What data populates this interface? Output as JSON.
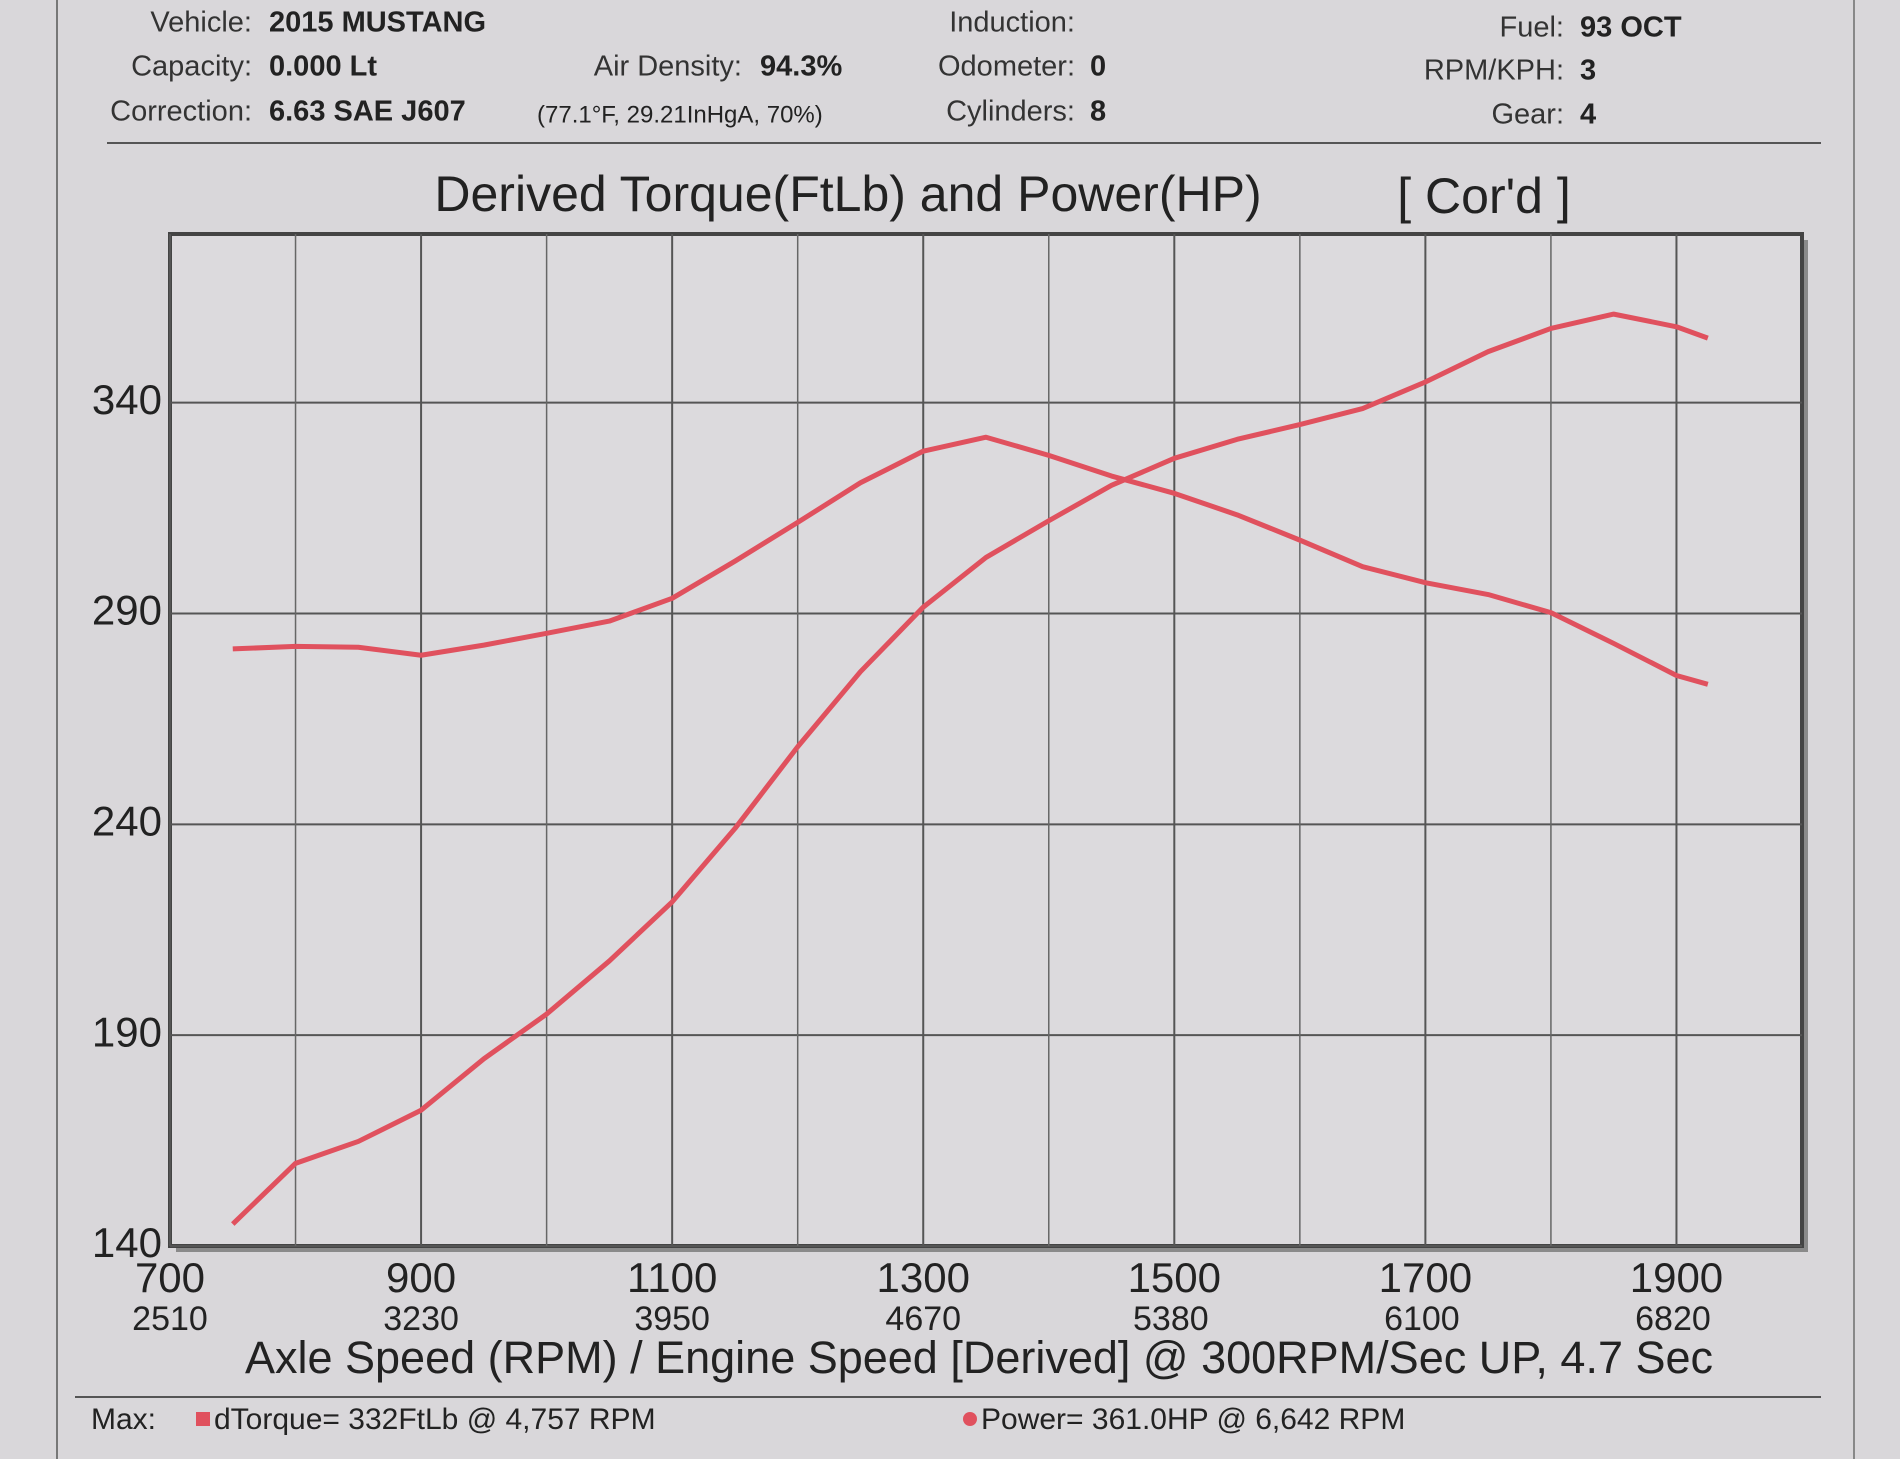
{
  "header": {
    "vehicle": {
      "label": "Vehicle:",
      "value": "2015 MUSTANG"
    },
    "capacity": {
      "label": "Capacity:",
      "value": "0.000 Lt"
    },
    "correction": {
      "label": "Correction:",
      "value": "6.63 SAE J607"
    },
    "air_density": {
      "label": "Air Density:",
      "value": "94.3%"
    },
    "conditions": "(77.1°F, 29.21InHgA, 70%)",
    "induction": {
      "label": "Induction:",
      "value": ""
    },
    "odometer": {
      "label": "Odometer:",
      "value": "0"
    },
    "cylinders": {
      "label": "Cylinders:",
      "value": "8"
    },
    "fuel": {
      "label": "Fuel:",
      "value": "93 OCT"
    },
    "rpm_kph": {
      "label": "RPM/KPH:",
      "value": "3"
    },
    "gear": {
      "label": "Gear:",
      "value": "4"
    }
  },
  "chart_data": {
    "type": "line",
    "title": "Derived Torque(FtLb) and Power(HP)",
    "subtitle": "[ Cor'd ]",
    "x_label": "Axle Speed (RPM) / Engine Speed [Derived] @ 300RPM/Sec UP, 4.7 Sec",
    "x": [
      750,
      800,
      850,
      900,
      950,
      1000,
      1050,
      1100,
      1150,
      1200,
      1250,
      1300,
      1350,
      1400,
      1450,
      1500,
      1550,
      1600,
      1650,
      1700,
      1750,
      1800,
      1850,
      1900,
      1925
    ],
    "series": [
      {
        "name": "dTorque",
        "color": "#e0515e",
        "max_label": "= 332FtLb @ 4,757 RPM",
        "marker": "square",
        "values": [
          281.6,
          282.2,
          282,
          280.1,
          282.5,
          285.3,
          288.2,
          293.6,
          302.4,
          311.6,
          321,
          328.5,
          331.8,
          327.5,
          322.6,
          318.5,
          313.4,
          307.4,
          301.1,
          297.3,
          294.5,
          290.2,
          282.9,
          275.3,
          273.2
        ]
      },
      {
        "name": "Power",
        "color": "#e0515e",
        "max_label": "= 361.0HP @ 6,642 RPM",
        "marker": "circle",
        "values": [
          145.2,
          159.6,
          164.8,
          172.2,
          184.4,
          195,
          207.6,
          221.6,
          239,
          258.4,
          276.2,
          291.5,
          303.3,
          312,
          320.4,
          326.8,
          331.3,
          334.8,
          338.6,
          344.9,
          352.1,
          357.6,
          361,
          358,
          355.3
        ]
      }
    ],
    "xlim": [
      700,
      2000
    ],
    "xticks": [
      700,
      900,
      1100,
      1300,
      1500,
      1700,
      1900
    ],
    "xminorticks": [
      800,
      1000,
      1200,
      1400,
      1600,
      1800
    ],
    "x2lim": [
      2510,
      7190
    ],
    "x2ticks": [
      2510,
      3230,
      3950,
      4670,
      5380,
      6100,
      6820
    ],
    "ylim": [
      140,
      380
    ],
    "yticks": [
      140,
      190,
      240,
      290,
      340
    ],
    "grid": true,
    "legend_prefix": "Max:"
  }
}
